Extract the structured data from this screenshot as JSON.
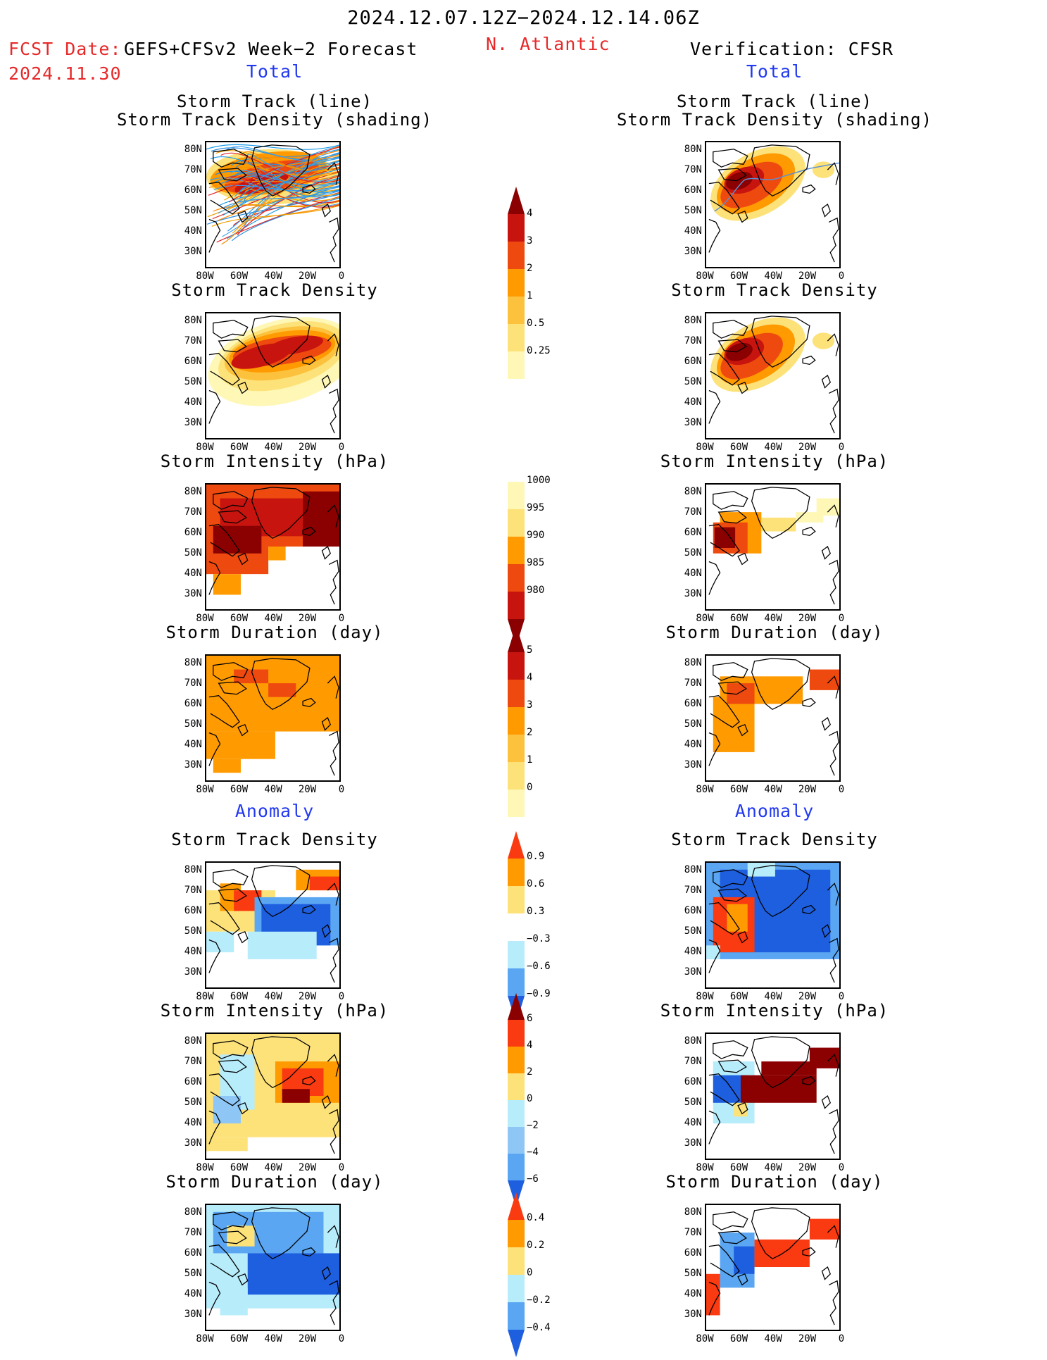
{
  "header": {
    "period": "2024.12.07.12Z−2024.12.14.06Z",
    "fcst_label": "FCST Date:",
    "fcst_model": "GEFS+CFSv2 Week−2 Forecast",
    "fcst_date": "2024.11.30",
    "region": "N. Atlantic",
    "verification": "Verification: CFSR"
  },
  "sections": {
    "total_left": "Total",
    "total_right": "Total",
    "anomaly_left": "Anomaly",
    "anomaly_right": "Anomaly"
  },
  "panel_titles": {
    "track_line": "Storm Track (line)",
    "track_density_shading": "Storm Track Density (shading)",
    "track_density": "Storm Track Density",
    "intensity": "Storm Intensity (hPa)",
    "duration": "Storm Duration (day)"
  },
  "axes": {
    "lat_labels": [
      "80N",
      "70N",
      "60N",
      "50N",
      "40N",
      "30N"
    ],
    "lon_labels": [
      "80W",
      "60W",
      "40W",
      "20W",
      "0"
    ]
  },
  "colorbars": {
    "density": {
      "labels": [
        "4",
        "3",
        "2",
        "1",
        "0.5",
        "0.25"
      ],
      "colors": [
        "#8b0000",
        "#c8140e",
        "#ee4a10",
        "#ff9a00",
        "#fcc23d",
        "#fde27a",
        "#fef7b6"
      ]
    },
    "intensity": {
      "labels": [
        "1000",
        "995",
        "990",
        "985",
        "980"
      ],
      "colors": [
        "#fef7b6",
        "#fde27a",
        "#ff9a00",
        "#ee4a10",
        "#c8140e",
        "#8b0000"
      ]
    },
    "duration": {
      "labels": [
        "5",
        "4",
        "3",
        "2",
        "1",
        "0"
      ],
      "colors": [
        "#8b0000",
        "#c8140e",
        "#ee4a10",
        "#ff9a00",
        "#fcc23d",
        "#fde27a",
        "#fef7b6"
      ]
    },
    "density_anom": {
      "labels": [
        "0.9",
        "0.6",
        "0.3",
        "−0.3",
        "−0.6",
        "−0.9"
      ],
      "colors": [
        "#fa3a10",
        "#ff9a00",
        "#fde27a",
        "#ffffff",
        "#b7ecfb",
        "#5aa6f2",
        "#1e5fe0"
      ]
    },
    "intensity_anom": {
      "labels": [
        "6",
        "4",
        "2",
        "0",
        "−2",
        "−4",
        "−6"
      ],
      "colors": [
        "#8b0000",
        "#fa3a10",
        "#ff9a00",
        "#fde27a",
        "#b7ecfb",
        "#8ec7f6",
        "#5aa6f2",
        "#1e5fe0"
      ]
    },
    "duration_anom": {
      "labels": [
        "0.4",
        "0.2",
        "0",
        "−0.2",
        "−0.4"
      ],
      "colors": [
        "#fa3a10",
        "#ff9a00",
        "#fde27a",
        "#b7ecfb",
        "#5aa6f2",
        "#1e5fe0"
      ]
    }
  }
}
